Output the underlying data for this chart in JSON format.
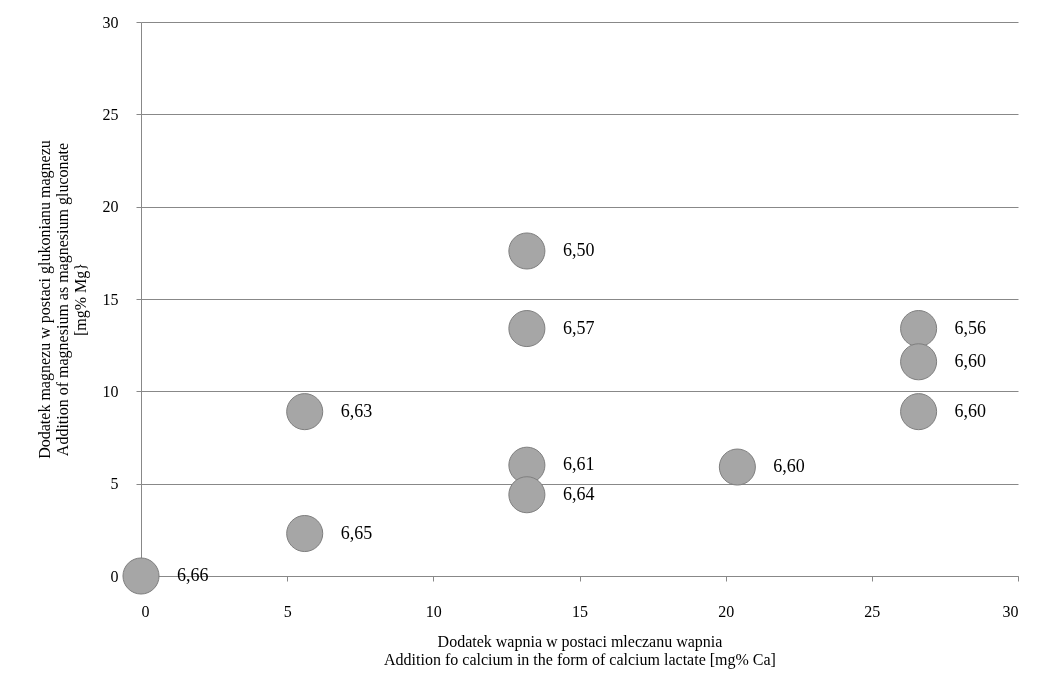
{
  "chart_data": {
    "type": "scatter",
    "xlabel": "Dodatek wapnia w postaci mleczanu wapnia\nAddition fo calcium in the form of calcium lactate [mg% Ca]",
    "ylabel": "Dodatek magnezu w postaci glukonianu magnezu\nAddition of magnesium as magnesium  gluconate\n[mg% Mg}",
    "x": [
      0,
      5.6,
      5.6,
      13.2,
      13.2,
      13.2,
      13.2,
      20.4,
      26.6,
      26.6,
      26.6
    ],
    "values": [
      0,
      2.3,
      8.9,
      17.6,
      13.4,
      6.0,
      4.4,
      5.9,
      13.4,
      11.6,
      8.9
    ],
    "color": "#a6a6a6",
    "marker": "circle",
    "xlim": [
      0,
      30
    ],
    "ylim": [
      0,
      30
    ],
    "xticks": [
      0,
      5,
      10,
      15,
      20,
      25,
      30
    ],
    "yticks": [
      0,
      5,
      10,
      15,
      20,
      25,
      30
    ],
    "grid": "y",
    "annotations": [
      {
        "text": "6,66",
        "x": 0,
        "y": 0
      },
      {
        "text": "6,65",
        "x": 5.6,
        "y": 2.3
      },
      {
        "text": "6,63",
        "x": 5.6,
        "y": 8.9
      },
      {
        "text": "6,50",
        "x": 13.2,
        "y": 17.6
      },
      {
        "text": "6,57",
        "x": 13.2,
        "y": 13.4
      },
      {
        "text": "6,61",
        "x": 13.2,
        "y": 6.0
      },
      {
        "text": "6,64",
        "x": 13.2,
        "y": 4.4
      },
      {
        "text": "6,60",
        "x": 20.4,
        "y": 5.9
      },
      {
        "text": "6,56",
        "x": 26.6,
        "y": 13.4
      },
      {
        "text": "6,60",
        "x": 26.6,
        "y": 11.6
      },
      {
        "text": "6,60",
        "x": 26.6,
        "y": 8.9
      }
    ]
  }
}
